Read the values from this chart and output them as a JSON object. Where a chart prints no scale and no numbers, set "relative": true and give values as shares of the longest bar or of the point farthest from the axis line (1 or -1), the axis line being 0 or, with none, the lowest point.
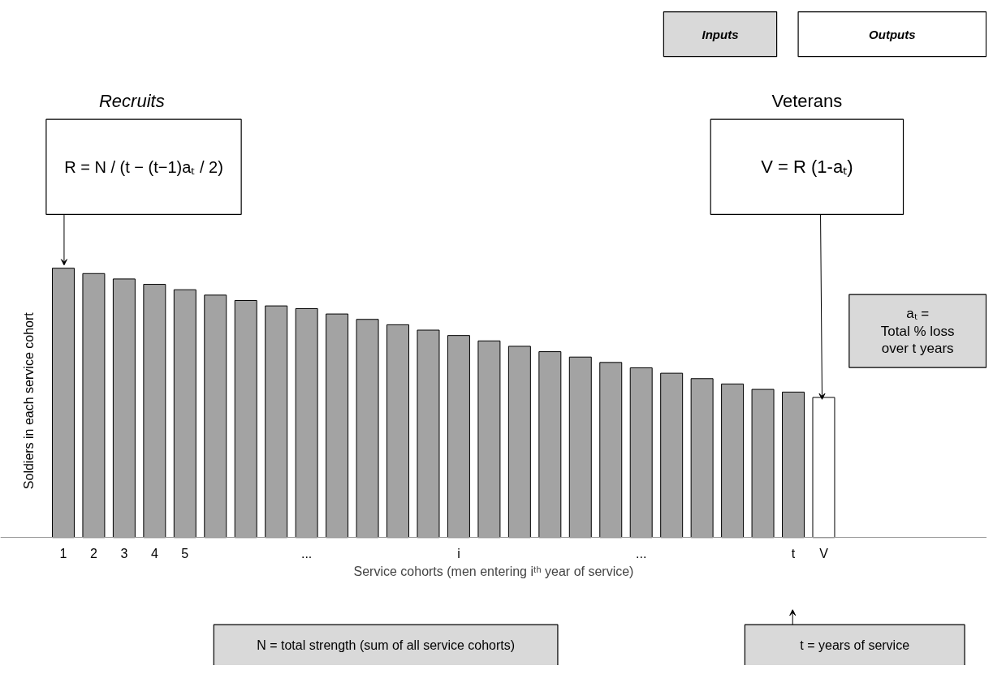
{
  "chart_data": {
    "type": "bar",
    "relative": true,
    "categories": [
      "1",
      "2",
      "3",
      "4",
      "5",
      null,
      null,
      null,
      "...",
      null,
      null,
      null,
      null,
      "i",
      null,
      null,
      null,
      null,
      null,
      "...",
      null,
      null,
      null,
      null,
      "t",
      "V"
    ],
    "values": [
      1.0,
      0.98,
      0.96,
      0.94,
      0.92,
      0.9,
      0.88,
      0.86,
      0.85,
      0.83,
      0.81,
      0.79,
      0.77,
      0.75,
      0.73,
      0.71,
      0.69,
      0.67,
      0.65,
      0.63,
      0.61,
      0.59,
      0.57,
      0.55,
      0.54,
      0.52
    ],
    "colors": [
      "#a3a3a3",
      "#a3a3a3",
      "#a3a3a3",
      "#a3a3a3",
      "#a3a3a3",
      "#a3a3a3",
      "#a3a3a3",
      "#a3a3a3",
      "#a3a3a3",
      "#a3a3a3",
      "#a3a3a3",
      "#a3a3a3",
      "#a3a3a3",
      "#a3a3a3",
      "#a3a3a3",
      "#a3a3a3",
      "#a3a3a3",
      "#a3a3a3",
      "#a3a3a3",
      "#a3a3a3",
      "#a3a3a3",
      "#a3a3a3",
      "#a3a3a3",
      "#a3a3a3",
      "#a3a3a3",
      "#ffffff"
    ],
    "xlabel": "Service cohorts (men entering iᵗʰ year of service)",
    "ylabel": "Soldiers in each service cohort",
    "annotations": [
      "Inputs",
      "Outputs",
      "Recruits",
      "Veterans",
      "R = N / (t − (t−1)aₜ / 2)",
      "V = R (1-aₜ)",
      "aₜ =\nTotal % loss\nover t years",
      "N = total strength (sum of all service cohorts)",
      "t = years of service"
    ],
    "grid": false
  }
}
